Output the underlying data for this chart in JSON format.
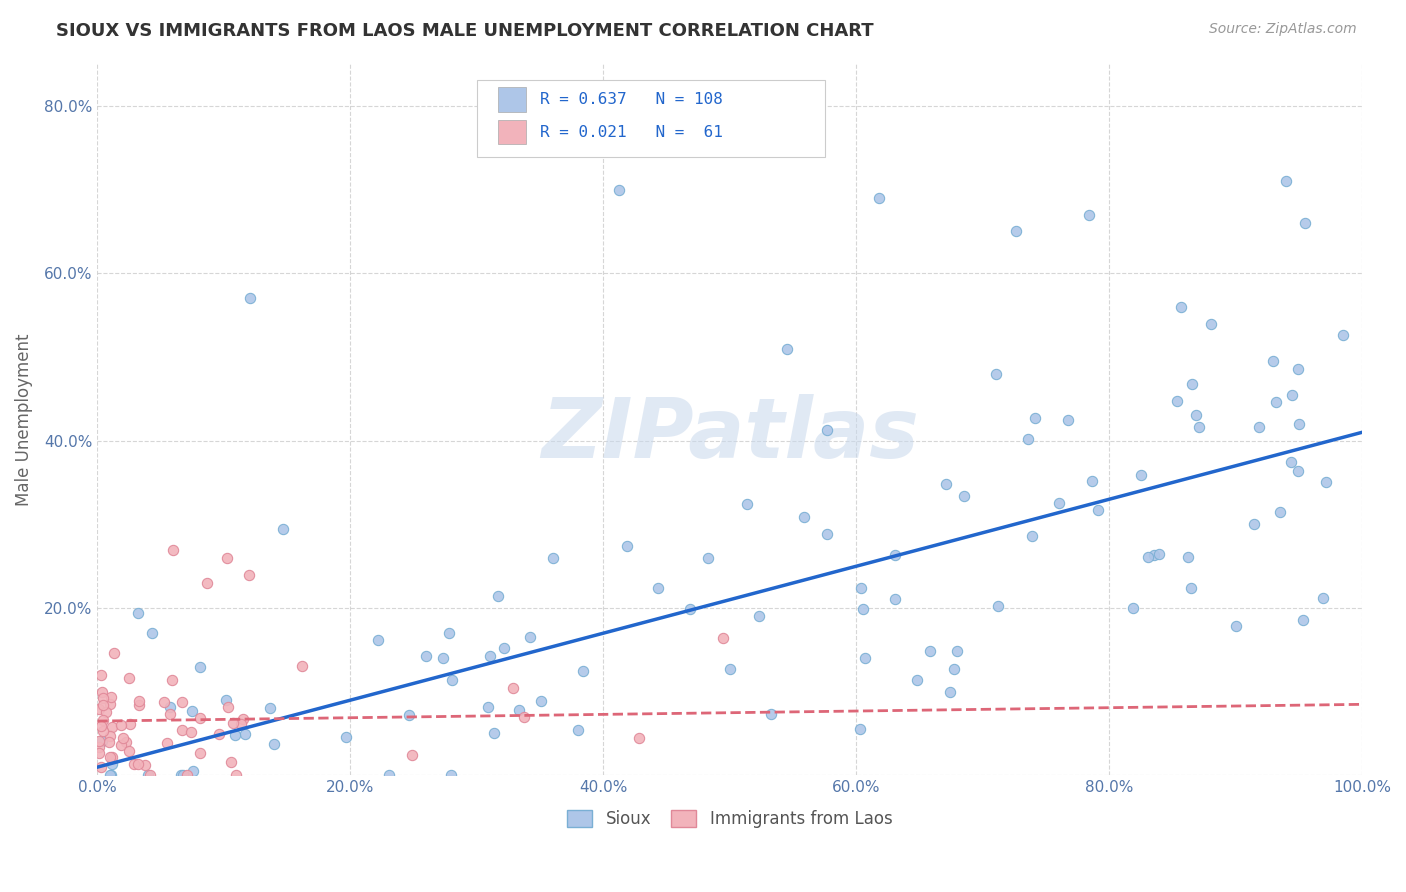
{
  "title": "SIOUX VS IMMIGRANTS FROM LAOS MALE UNEMPLOYMENT CORRELATION CHART",
  "source": "Source: ZipAtlas.com",
  "ylabel": "Male Unemployment",
  "xlim": [
    0.0,
    1.0
  ],
  "ylim": [
    0.0,
    0.85
  ],
  "xtick_labels": [
    "0.0%",
    "20.0%",
    "40.0%",
    "60.0%",
    "80.0%",
    "100.0%"
  ],
  "ytick_labels": [
    "",
    "20.0%",
    "40.0%",
    "60.0%",
    "80.0%"
  ],
  "watermark_text": "ZIPatlas",
  "sioux_color": "#aec6e8",
  "sioux_edge_color": "#7aafd4",
  "laos_color": "#f2b3bb",
  "laos_edge_color": "#e08898",
  "trend_sioux_color": "#2266cc",
  "trend_laos_color": "#dd6677",
  "background_color": "#ffffff",
  "grid_color": "#cccccc",
  "legend_text_color": "#2266cc",
  "title_color": "#333333",
  "tick_color": "#5577aa",
  "sioux_R": "0.637",
  "sioux_N": "108",
  "laos_R": "0.021",
  "laos_N": "61"
}
